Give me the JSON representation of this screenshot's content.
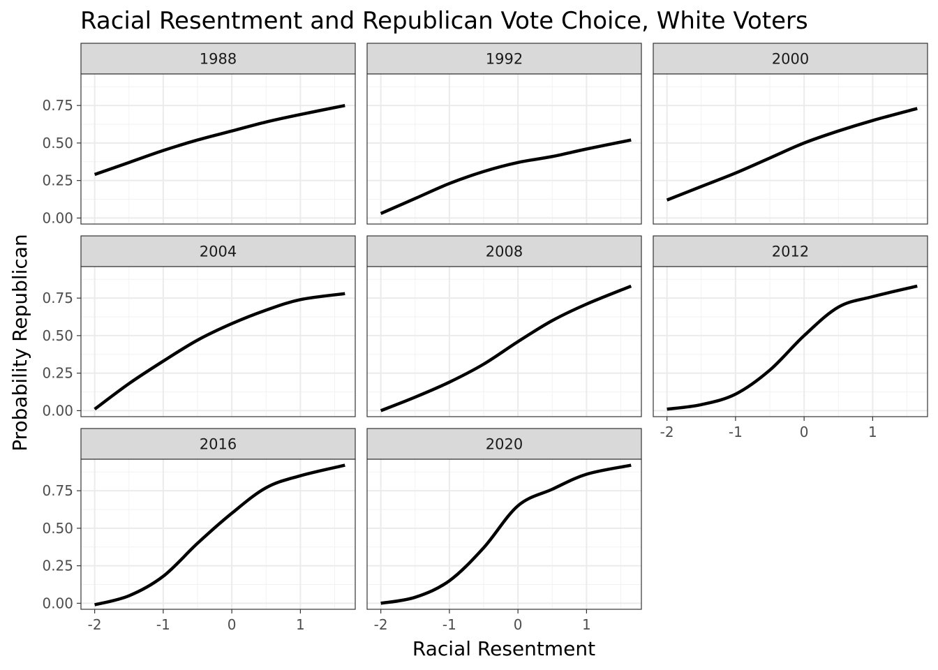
{
  "chart_data": {
    "type": "line",
    "title": "Racial Resentment and Republican Vote Choice, White Voters",
    "xlabel": "Racial Resentment",
    "ylabel": "Probability Republican",
    "xlim": [
      -2.2,
      1.8
    ],
    "ylim": [
      -0.04,
      0.96
    ],
    "x_ticks": [
      -2,
      -1,
      0,
      1
    ],
    "y_ticks": [
      0.0,
      0.25,
      0.5,
      0.75
    ],
    "x_tick_labels": [
      "-2",
      "-1",
      "0",
      "1"
    ],
    "y_tick_labels": [
      "0.00",
      "0.25",
      "0.50",
      "0.75"
    ],
    "grid": true,
    "layout": "facet-wrap 3 columns",
    "x": [
      -2.0,
      -1.5,
      -1.0,
      -0.5,
      0.0,
      0.5,
      1.0,
      1.65
    ],
    "series": [
      {
        "name": "1988",
        "values": [
          0.29,
          0.37,
          0.45,
          0.52,
          0.58,
          0.64,
          0.69,
          0.75
        ]
      },
      {
        "name": "1992",
        "values": [
          0.03,
          0.13,
          0.23,
          0.31,
          0.37,
          0.41,
          0.46,
          0.52
        ]
      },
      {
        "name": "2000",
        "values": [
          0.12,
          0.21,
          0.3,
          0.4,
          0.5,
          0.58,
          0.65,
          0.73
        ]
      },
      {
        "name": "2004",
        "values": [
          0.01,
          0.18,
          0.33,
          0.47,
          0.58,
          0.67,
          0.74,
          0.78
        ]
      },
      {
        "name": "2008",
        "values": [
          0.0,
          0.09,
          0.19,
          0.31,
          0.46,
          0.6,
          0.71,
          0.83
        ]
      },
      {
        "name": "2012",
        "values": [
          0.01,
          0.04,
          0.11,
          0.27,
          0.5,
          0.69,
          0.76,
          0.83
        ]
      },
      {
        "name": "2016",
        "values": [
          -0.01,
          0.05,
          0.18,
          0.4,
          0.6,
          0.77,
          0.85,
          0.92
        ]
      },
      {
        "name": "2020",
        "values": [
          0.0,
          0.04,
          0.15,
          0.37,
          0.65,
          0.76,
          0.86,
          0.92
        ]
      }
    ],
    "line_color": "#000000"
  }
}
